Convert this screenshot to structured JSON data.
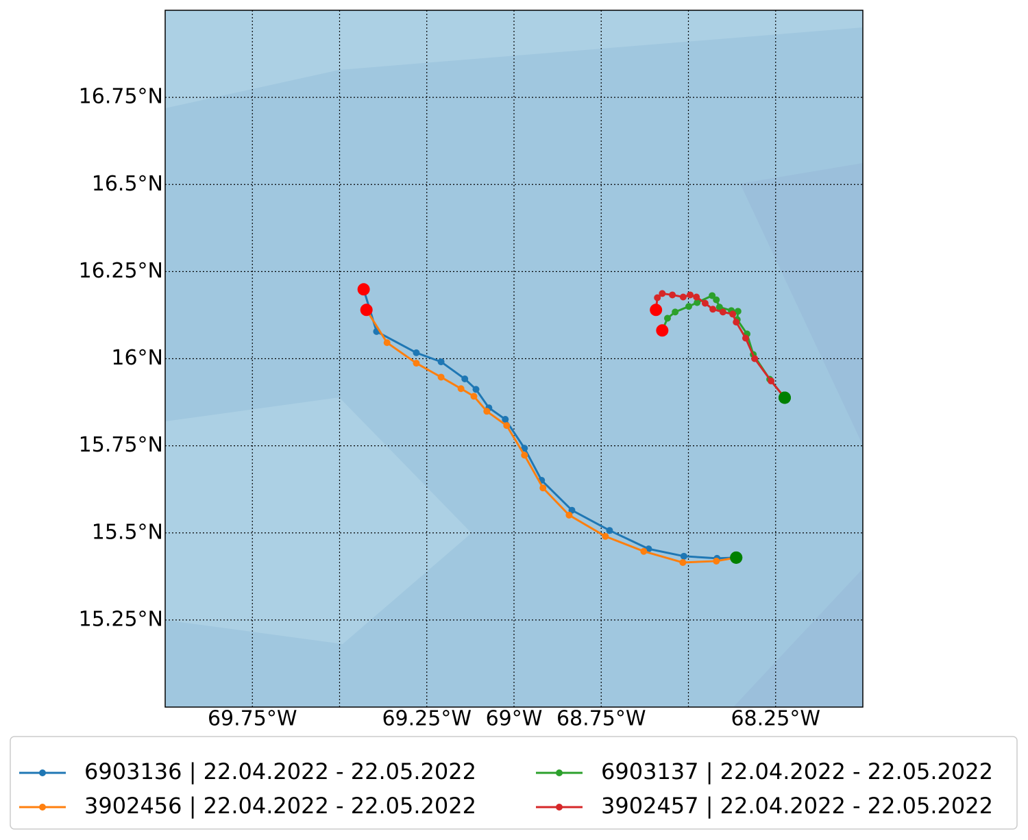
{
  "chart_data": {
    "type": "line",
    "xlim": [
      -70,
      -68
    ],
    "ylim": [
      15,
      17
    ],
    "xticks": [
      {
        "value": -69.75,
        "label": "69.75°W"
      },
      {
        "value": -69.5,
        "label": null
      },
      {
        "value": -69.25,
        "label": "69.25°W"
      },
      {
        "value": -69,
        "label": "69°W"
      },
      {
        "value": -68.75,
        "label": "68.75°W"
      },
      {
        "value": -68.5,
        "label": null
      },
      {
        "value": -68.25,
        "label": "68.25°W"
      }
    ],
    "yticks": [
      {
        "value": 15.25,
        "label": "15.25°N"
      },
      {
        "value": 15.5,
        "label": "15.5°N"
      },
      {
        "value": 15.75,
        "label": "15.75°N"
      },
      {
        "value": 16,
        "label": "16°N"
      },
      {
        "value": 16.25,
        "label": "16.25°N"
      },
      {
        "value": 16.5,
        "label": "16.5°N"
      },
      {
        "value": 16.75,
        "label": "16.75°N"
      }
    ],
    "grid": true,
    "start_color": "red",
    "end_color": "green",
    "series": [
      {
        "name": "6903136 | 22.04.2022 - 22.05.2022",
        "color": "#1f77b4",
        "x": [
          -69.431,
          -69.394,
          -69.28,
          -69.209,
          -69.141,
          -69.109,
          -69.072,
          -69.025,
          -68.97,
          -68.921,
          -68.834,
          -68.726,
          -68.614,
          -68.513,
          -68.418,
          -68.363
        ],
        "values": [
          16.199,
          16.078,
          16.017,
          15.991,
          15.942,
          15.912,
          15.859,
          15.826,
          15.743,
          15.651,
          15.565,
          15.507,
          15.454,
          15.433,
          15.427,
          15.429
        ]
      },
      {
        "name": "3902456 | 22.04.2022 - 22.05.2022",
        "color": "#ff7f0e",
        "x": [
          -69.423,
          -69.364,
          -69.28,
          -69.209,
          -69.152,
          -69.115,
          -69.078,
          -69.021,
          -68.97,
          -68.917,
          -68.842,
          -68.738,
          -68.628,
          -68.516,
          -68.42,
          -68.363
        ],
        "values": [
          16.14,
          16.046,
          15.987,
          15.947,
          15.914,
          15.892,
          15.849,
          15.808,
          15.723,
          15.629,
          15.551,
          15.49,
          15.447,
          15.415,
          15.419,
          15.429
        ]
      },
      {
        "name": "6903137 | 22.04.2022 - 22.05.2022",
        "color": "#2ca02c",
        "x": [
          -68.575,
          -68.56,
          -68.538,
          -68.499,
          -68.475,
          -68.432,
          -68.42,
          -68.411,
          -68.377,
          -68.358,
          -68.36,
          -68.332,
          -68.314,
          -68.267,
          -68.224
        ],
        "values": [
          16.081,
          16.116,
          16.134,
          16.15,
          16.161,
          16.181,
          16.169,
          16.148,
          16.138,
          16.136,
          16.112,
          16.071,
          16.012,
          15.941,
          15.888
        ]
      },
      {
        "name": "3902457 | 22.04.2022 - 22.05.2022",
        "color": "#d62728",
        "x": [
          -68.593,
          -68.589,
          -68.575,
          -68.546,
          -68.515,
          -68.495,
          -68.477,
          -68.452,
          -68.43,
          -68.401,
          -68.373,
          -68.363,
          -68.336,
          -68.31,
          -68.263,
          -68.224
        ],
        "values": [
          16.14,
          16.175,
          16.187,
          16.183,
          16.177,
          16.183,
          16.177,
          16.159,
          16.142,
          16.134,
          16.128,
          16.105,
          16.059,
          16.0,
          15.936,
          15.888
        ]
      }
    ]
  }
}
